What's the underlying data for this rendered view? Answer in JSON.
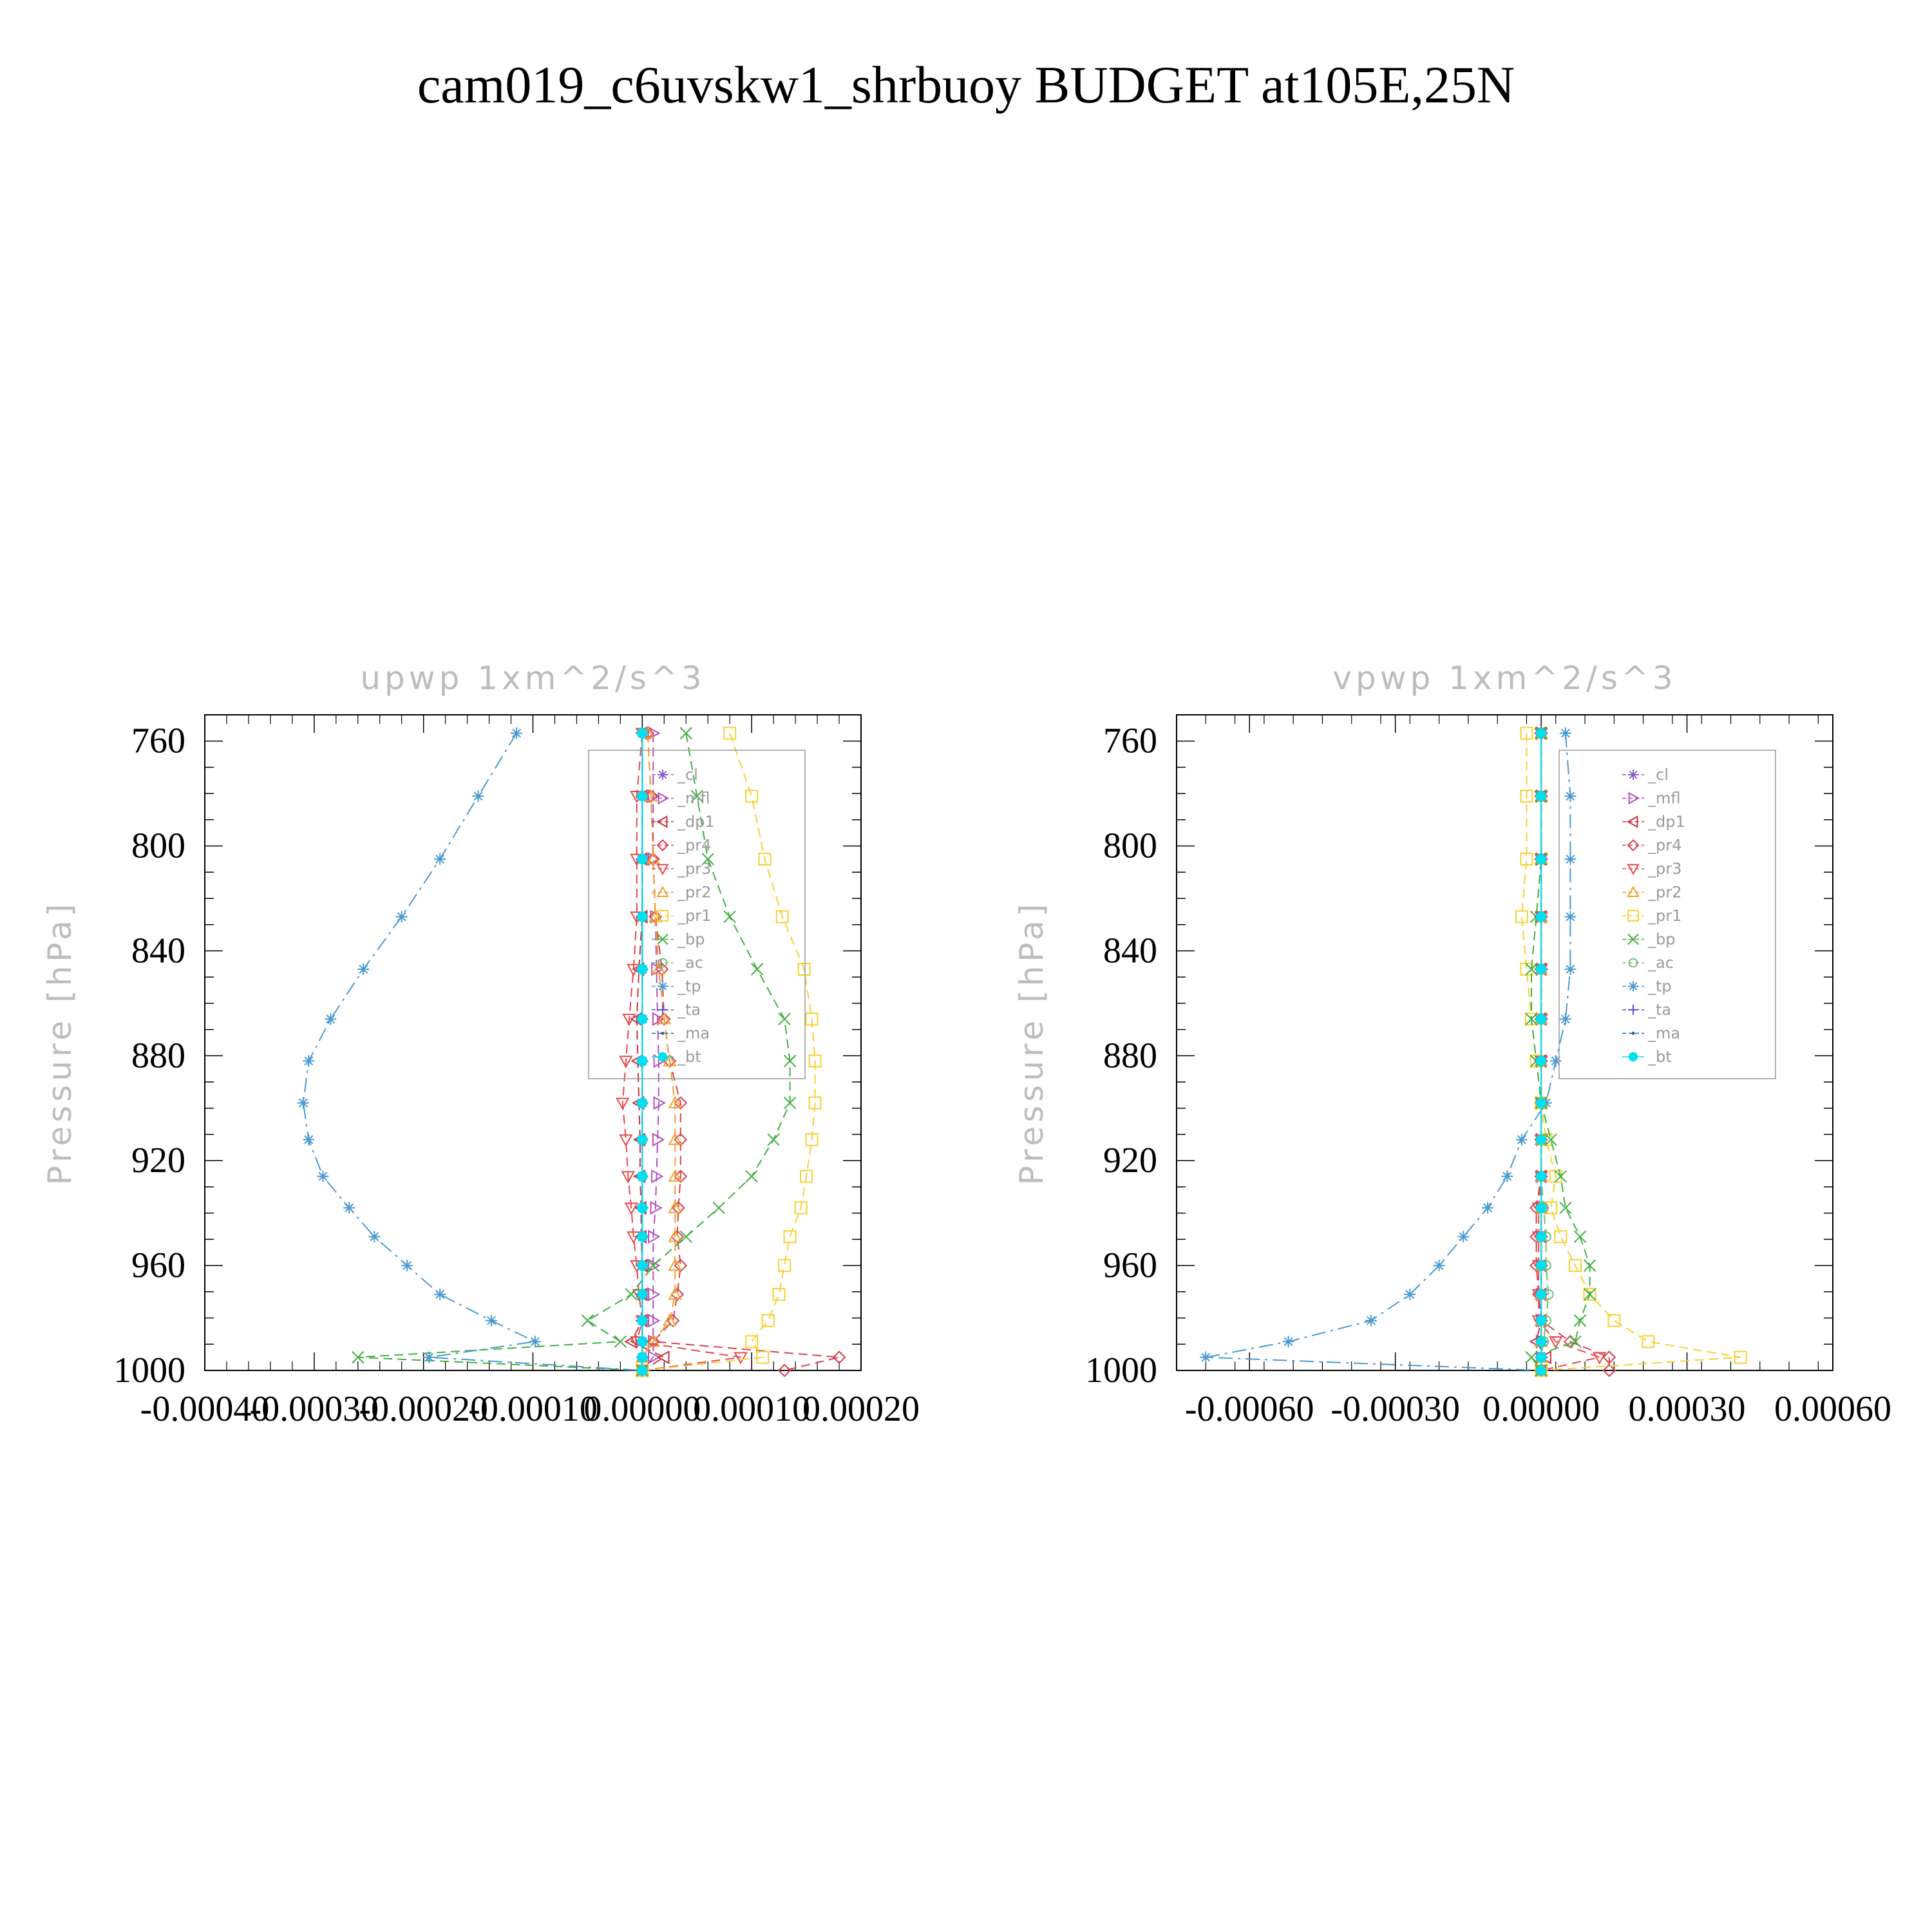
{
  "title": "cam019_c6uvskw1_shrbuoy  BUDGET at105E,25N",
  "chart_data": [
    {
      "type": "line",
      "title": "upwp    1xm^2/s^3",
      "ylabel": "Pressure  [hPa]",
      "ylim": [
        1000,
        750
      ],
      "y_ticks": [
        760,
        800,
        840,
        880,
        920,
        960,
        1000
      ],
      "xlim": [
        -0.0004,
        0.0002
      ],
      "x_ticks": [
        -0.0004,
        -0.0003,
        -0.0002,
        -0.0001,
        0.0,
        0.0001,
        0.0002
      ],
      "x_tick_labels": [
        "-0.00040",
        "-0.00030",
        "-0.00020",
        "-0.00010",
        "0.00000",
        "0.00010",
        "0.00020"
      ],
      "legend_position": "top-right",
      "levels": [
        757,
        781,
        805,
        827,
        847,
        866,
        882,
        898,
        912,
        926,
        938,
        949,
        960,
        971,
        981,
        989,
        995,
        1000
      ],
      "series": [
        {
          "name": "_cl",
          "color": "#8a5cc8",
          "marker": "star",
          "values": [
            0,
            0,
            0,
            0,
            0,
            0,
            0,
            0,
            0,
            0,
            0,
            0,
            0,
            0,
            0,
            0,
            0,
            0
          ]
        },
        {
          "name": "_mfl",
          "color": "#b04fc0",
          "marker": "tri-right",
          "values": [
            1e-05,
            1e-05,
            1e-05,
            1.2e-05,
            1.3e-05,
            1.4e-05,
            1.5e-05,
            1.5e-05,
            1.4e-05,
            1.3e-05,
            1.2e-05,
            1e-05,
            1e-05,
            1e-05,
            1e-05,
            1e-05,
            1e-05,
            0
          ]
        },
        {
          "name": "_dp1",
          "color": "#c8323c",
          "marker": "tri-left",
          "values": [
            0,
            0,
            0,
            0,
            -3e-06,
            -5e-06,
            -4e-06,
            -3e-06,
            -2e-06,
            -2e-06,
            -1e-06,
            -1e-06,
            0,
            0,
            0,
            -1e-05,
            2e-05,
            0
          ]
        },
        {
          "name": "_pr4",
          "color": "#d84050",
          "marker": "diamond",
          "values": [
            5e-06,
            8e-06,
            1e-05,
            1.2e-05,
            1.8e-05,
            2e-05,
            2.5e-05,
            3.5e-05,
            3.5e-05,
            3.5e-05,
            3.3e-05,
            3.2e-05,
            3.5e-05,
            3.2e-05,
            2.8e-05,
            1e-05,
            0.00018,
            0.00013
          ]
        },
        {
          "name": "_pr3",
          "color": "#e84848",
          "marker": "tri-down",
          "values": [
            0,
            -5e-06,
            -5e-06,
            -5e-06,
            -8e-06,
            -1.2e-05,
            -1.5e-05,
            -1.8e-05,
            -1.5e-05,
            -1.3e-05,
            -1e-05,
            -8e-06,
            -5e-06,
            -3e-06,
            0,
            -5e-06,
            9e-05,
            0
          ]
        },
        {
          "name": "_pr2",
          "color": "#f0a030",
          "marker": "tri-up",
          "values": [
            5e-06,
            8e-06,
            1e-05,
            1.2e-05,
            1.5e-05,
            2e-05,
            2.5e-05,
            3e-05,
            3e-05,
            3e-05,
            3e-05,
            3e-05,
            3e-05,
            3e-05,
            2.5e-05,
            1e-05,
            0,
            0
          ]
        },
        {
          "name": "_pr1",
          "color": "#f8d030",
          "marker": "square",
          "values": [
            8e-05,
            0.0001,
            0.000112,
            0.000128,
            0.000148,
            0.000155,
            0.000158,
            0.000158,
            0.000155,
            0.00015,
            0.000145,
            0.000135,
            0.00013,
            0.000125,
            0.000115,
            0.0001,
            0.00011,
            0
          ]
        },
        {
          "name": "_bp",
          "color": "#40b040",
          "marker": "x",
          "values": [
            4e-05,
            5e-05,
            6e-05,
            8e-05,
            0.000105,
            0.00013,
            0.000135,
            0.000135,
            0.00012,
            0.0001,
            7e-05,
            4e-05,
            1e-05,
            -1e-05,
            -5e-05,
            -2e-05,
            -0.00026,
            0
          ]
        },
        {
          "name": "_ac",
          "color": "#70c070",
          "marker": "circle",
          "values": [
            0,
            0,
            0,
            0,
            0,
            0,
            0,
            0,
            0,
            0,
            0,
            0,
            0,
            0,
            0,
            0,
            0,
            0
          ]
        },
        {
          "name": "_tp",
          "color": "#4a9ad0",
          "marker": "star",
          "values": [
            -0.000115,
            -0.00015,
            -0.000185,
            -0.00022,
            -0.000255,
            -0.000285,
            -0.000305,
            -0.00031,
            -0.000305,
            -0.000292,
            -0.000268,
            -0.000245,
            -0.000215,
            -0.000185,
            -0.000138,
            -9.8e-05,
            -0.000195,
            0
          ]
        },
        {
          "name": "_ta",
          "color": "#5050e0",
          "marker": "plus",
          "values": [
            0,
            0,
            0,
            0,
            0,
            0,
            0,
            0,
            0,
            0,
            0,
            0,
            0,
            0,
            0,
            0,
            0,
            0
          ]
        },
        {
          "name": "_ma",
          "color": "#2060b0",
          "marker": "dot",
          "values": [
            0,
            0,
            0,
            0,
            0,
            0,
            0,
            0,
            0,
            0,
            0,
            0,
            0,
            0,
            0,
            0,
            0,
            0
          ]
        },
        {
          "name": "_bt",
          "color": "#00e0f0",
          "marker": "disc",
          "values": [
            0,
            0,
            0,
            0,
            0,
            0,
            0,
            0,
            0,
            0,
            0,
            0,
            0,
            0,
            0,
            0,
            0,
            0
          ]
        }
      ]
    },
    {
      "type": "line",
      "title": "vpwp    1xm^2/s^3",
      "ylabel": "Pressure  [hPa]",
      "ylim": [
        1000,
        750
      ],
      "y_ticks": [
        760,
        800,
        840,
        880,
        920,
        960,
        1000
      ],
      "xlim": [
        -0.00075,
        0.0006
      ],
      "x_ticks": [
        -0.0006,
        -0.0003,
        0.0,
        0.0003,
        0.0006
      ],
      "x_tick_labels": [
        "-0.00060",
        "-0.00030",
        "0.00000",
        "0.00030",
        "0.00060"
      ],
      "legend_position": "top-right",
      "levels": [
        757,
        781,
        805,
        827,
        847,
        866,
        882,
        898,
        912,
        926,
        938,
        949,
        960,
        971,
        981,
        989,
        995,
        1000
      ],
      "series": [
        {
          "name": "_cl",
          "color": "#8a5cc8",
          "marker": "star",
          "values": [
            0,
            0,
            0,
            0,
            0,
            0,
            0,
            0,
            0,
            0,
            0,
            0,
            0,
            0,
            0,
            0,
            0,
            0
          ]
        },
        {
          "name": "_mfl",
          "color": "#b04fc0",
          "marker": "tri-right",
          "values": [
            0,
            0,
            0,
            0,
            0,
            0,
            0,
            0,
            0,
            0,
            0,
            0,
            0,
            0,
            0,
            0,
            0,
            0
          ]
        },
        {
          "name": "_dp1",
          "color": "#c8323c",
          "marker": "tri-left",
          "values": [
            0,
            0,
            0,
            0,
            0,
            0,
            0,
            0,
            0,
            0,
            0,
            0,
            0,
            0,
            0,
            -1e-05,
            1e-05,
            0
          ]
        },
        {
          "name": "_pr4",
          "color": "#d84050",
          "marker": "diamond",
          "values": [
            0,
            0,
            0,
            0,
            0,
            0,
            0,
            0,
            0,
            0,
            -1e-05,
            -1e-05,
            -1e-05,
            -5e-06,
            0,
            6e-05,
            0.00014,
            0.00014
          ]
        },
        {
          "name": "_pr3",
          "color": "#e84848",
          "marker": "tri-down",
          "values": [
            0,
            0,
            0,
            0,
            0,
            0,
            0,
            0,
            0,
            0,
            -5e-06,
            -5e-06,
            -5e-06,
            -5e-06,
            -5e-06,
            3e-05,
            0.00012,
            0
          ]
        },
        {
          "name": "_pr2",
          "color": "#f0a030",
          "marker": "tri-up",
          "values": [
            0,
            0,
            0,
            0,
            0,
            0,
            0,
            0,
            0,
            0,
            0,
            0,
            0,
            0,
            0,
            0,
            0,
            0
          ]
        },
        {
          "name": "_pr1",
          "color": "#f8d030",
          "marker": "square",
          "values": [
            -3e-05,
            -3e-05,
            -3e-05,
            -4e-05,
            -3e-05,
            -2e-05,
            -1e-05,
            0,
            1e-05,
            3e-05,
            2e-05,
            4e-05,
            7e-05,
            0.0001,
            0.00015,
            0.00022,
            0.00041,
            0
          ]
        },
        {
          "name": "_bp",
          "color": "#40b040",
          "marker": "x",
          "values": [
            0,
            0,
            0,
            -1e-05,
            -2e-05,
            -2e-05,
            -1e-05,
            0,
            2e-05,
            4e-05,
            5e-05,
            8e-05,
            0.0001,
            0.0001,
            8e-05,
            7e-05,
            -2e-05,
            0
          ]
        },
        {
          "name": "_ac",
          "color": "#70c070",
          "marker": "circle",
          "values": [
            0,
            0,
            0,
            0,
            0,
            0,
            0,
            0,
            0,
            0,
            5e-06,
            1e-05,
            1e-05,
            1.5e-05,
            1e-05,
            5e-06,
            0,
            0
          ]
        },
        {
          "name": "_tp",
          "color": "#4a9ad0",
          "marker": "star",
          "values": [
            5e-05,
            6e-05,
            6e-05,
            6e-05,
            6e-05,
            5e-05,
            3e-05,
            1e-05,
            -4e-05,
            -7e-05,
            -0.00011,
            -0.00016,
            -0.00021,
            -0.00027,
            -0.00035,
            -0.00052,
            -0.00069,
            0
          ]
        },
        {
          "name": "_ta",
          "color": "#5050e0",
          "marker": "plus",
          "values": [
            0,
            0,
            0,
            0,
            0,
            0,
            0,
            0,
            0,
            0,
            0,
            0,
            0,
            0,
            0,
            0,
            0,
            0
          ]
        },
        {
          "name": "_ma",
          "color": "#2060b0",
          "marker": "dot",
          "values": [
            0,
            0,
            0,
            0,
            0,
            0,
            0,
            0,
            0,
            0,
            0,
            0,
            0,
            0,
            0,
            0,
            0,
            0
          ]
        },
        {
          "name": "_bt",
          "color": "#00e0f0",
          "marker": "disc",
          "values": [
            0,
            0,
            0,
            0,
            0,
            0,
            0,
            0,
            0,
            0,
            0,
            0,
            0,
            0,
            0,
            0,
            0,
            0
          ]
        }
      ]
    }
  ]
}
